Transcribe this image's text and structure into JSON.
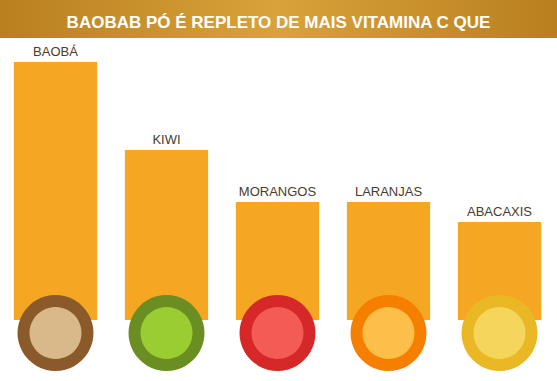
{
  "chart_data": {
    "type": "bar",
    "title": "BAOBAB PÓ É REPLETO DE MAIS VITAMINA C QUE",
    "categories": [
      "BAOBÁ",
      "KIWI",
      "MORANGOS",
      "LARANJAS",
      "ABACAXIS"
    ],
    "values": [
      258,
      170,
      118,
      118,
      98
    ],
    "color": "#f5a623",
    "grid": false,
    "tick_labels": false
  }
}
